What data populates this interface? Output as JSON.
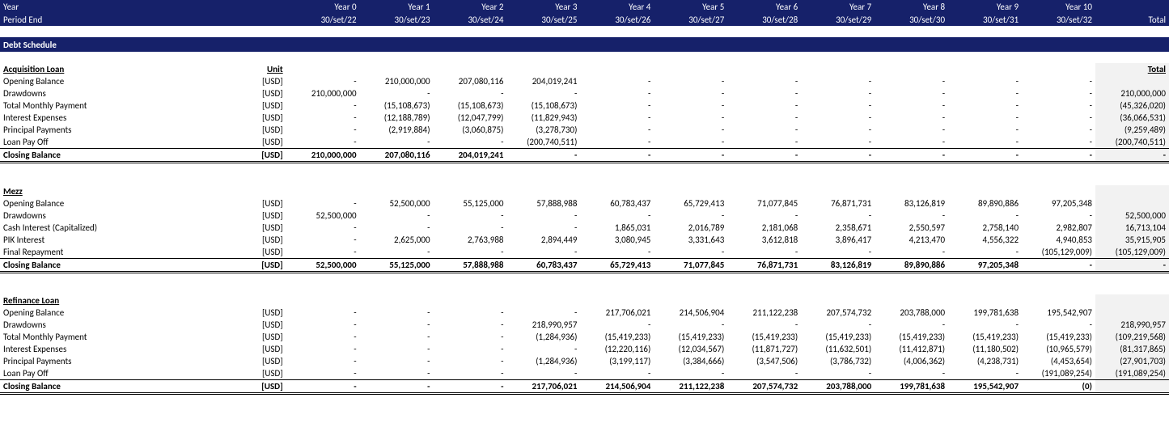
{
  "header": {
    "yearLabel": "Year",
    "periodLabel": "Period End",
    "years": [
      "Year 0",
      "Year 1",
      "Year 2",
      "Year 3",
      "Year 4",
      "Year 5",
      "Year 6",
      "Year 7",
      "Year 8",
      "Year 9",
      "Year 10"
    ],
    "dates": [
      "30/set/22",
      "30/set/23",
      "30/set/24",
      "30/set/25",
      "30/set/26",
      "30/set/27",
      "30/set/28",
      "30/set/29",
      "30/set/30",
      "30/set/31",
      "30/set/32"
    ],
    "totalLabel": "Total"
  },
  "sectionTitle": "Debt Schedule",
  "unitHeader": "Unit",
  "totalColHeader": "Total",
  "unit": "[USD]",
  "sections": [
    {
      "title": "Acquisition Loan",
      "showUnitHeader": true,
      "rows": [
        {
          "label": "Opening Balance",
          "vals": [
            "-",
            "210,000,000",
            "207,080,116",
            "204,019,241",
            "-",
            "-",
            "-",
            "-",
            "-",
            "-",
            "-"
          ],
          "total": ""
        },
        {
          "label": "Drawdowns",
          "vals": [
            "210,000,000",
            "-",
            "-",
            "-",
            "-",
            "-",
            "-",
            "-",
            "-",
            "-",
            "-"
          ],
          "total": "210,000,000"
        },
        {
          "label": "Total Monthly Payment",
          "vals": [
            "-",
            "(15,108,673)",
            "(15,108,673)",
            "(15,108,673)",
            "-",
            "-",
            "-",
            "-",
            "-",
            "-",
            "-"
          ],
          "total": "(45,326,020)"
        },
        {
          "label": "Interest Expenses",
          "vals": [
            "-",
            "(12,188,789)",
            "(12,047,799)",
            "(11,829,943)",
            "-",
            "-",
            "-",
            "-",
            "-",
            "-",
            "-"
          ],
          "total": "(36,066,531)"
        },
        {
          "label": "Principal Payments",
          "vals": [
            "-",
            "(2,919,884)",
            "(3,060,875)",
            "(3,278,730)",
            "-",
            "-",
            "-",
            "-",
            "-",
            "-",
            "-"
          ],
          "total": "(9,259,489)"
        },
        {
          "label": "Loan Pay Off",
          "vals": [
            "-",
            "-",
            "-",
            "(200,740,511)",
            "-",
            "-",
            "-",
            "-",
            "-",
            "-",
            "-"
          ],
          "total": "(200,740,511)"
        }
      ],
      "closing": {
        "label": "Closing Balance",
        "vals": [
          "210,000,000",
          "207,080,116",
          "204,019,241",
          "-",
          "-",
          "-",
          "-",
          "-",
          "-",
          "-",
          "-"
        ],
        "total": "-"
      }
    },
    {
      "title": "Mezz",
      "showUnitHeader": false,
      "rows": [
        {
          "label": "Opening Balance",
          "vals": [
            "-",
            "52,500,000",
            "55,125,000",
            "57,888,988",
            "60,783,437",
            "65,729,413",
            "71,077,845",
            "76,871,731",
            "83,126,819",
            "89,890,886",
            "97,205,348"
          ],
          "total": ""
        },
        {
          "label": "Drawdowns",
          "vals": [
            "52,500,000",
            "-",
            "-",
            "-",
            "-",
            "-",
            "-",
            "-",
            "-",
            "-",
            "-"
          ],
          "total": "52,500,000"
        },
        {
          "label": "Cash Interest (Capitalized)",
          "vals": [
            "-",
            "-",
            "-",
            "-",
            "1,865,031",
            "2,016,789",
            "2,181,068",
            "2,358,671",
            "2,550,597",
            "2,758,140",
            "2,982,807"
          ],
          "total": "16,713,104"
        },
        {
          "label": "PIK Interest",
          "vals": [
            "-",
            "2,625,000",
            "2,763,988",
            "2,894,449",
            "3,080,945",
            "3,331,643",
            "3,612,818",
            "3,896,417",
            "4,213,470",
            "4,556,322",
            "4,940,853"
          ],
          "total": "35,915,905"
        },
        {
          "label": "Final Repayment",
          "vals": [
            "-",
            "-",
            "-",
            "-",
            "-",
            "-",
            "-",
            "-",
            "-",
            "-",
            "(105,129,009)"
          ],
          "total": "(105,129,009)"
        }
      ],
      "closing": {
        "label": "Closing Balance",
        "vals": [
          "52,500,000",
          "55,125,000",
          "57,888,988",
          "60,783,437",
          "65,729,413",
          "71,077,845",
          "76,871,731",
          "83,126,819",
          "89,890,886",
          "97,205,348",
          "-"
        ],
        "total": "-"
      }
    },
    {
      "title": "Refinance Loan",
      "showUnitHeader": false,
      "rows": [
        {
          "label": "Opening Balance",
          "vals": [
            "-",
            "-",
            "-",
            "-",
            "217,706,021",
            "214,506,904",
            "211,122,238",
            "207,574,732",
            "203,788,000",
            "199,781,638",
            "195,542,907"
          ],
          "total": ""
        },
        {
          "label": "Drawdowns",
          "vals": [
            "-",
            "-",
            "-",
            "218,990,957",
            "-",
            "-",
            "-",
            "-",
            "-",
            "-",
            "-"
          ],
          "total": "218,990,957"
        },
        {
          "label": "Total Monthly Payment",
          "vals": [
            "-",
            "-",
            "-",
            "(1,284,936)",
            "(15,419,233)",
            "(15,419,233)",
            "(15,419,233)",
            "(15,419,233)",
            "(15,419,233)",
            "(15,419,233)",
            "(15,419,233)"
          ],
          "total": "(109,219,568)"
        },
        {
          "label": "Interest Expenses",
          "vals": [
            "-",
            "-",
            "-",
            "-",
            "(12,220,116)",
            "(12,034,567)",
            "(11,871,727)",
            "(11,632,501)",
            "(11,412,871)",
            "(11,180,502)",
            "(10,965,579)"
          ],
          "total": "(81,317,865)"
        },
        {
          "label": "Principal Payments",
          "vals": [
            "-",
            "-",
            "-",
            "(1,284,936)",
            "(3,199,117)",
            "(3,384,666)",
            "(3,547,506)",
            "(3,786,732)",
            "(4,006,362)",
            "(4,238,731)",
            "(4,453,654)"
          ],
          "total": "(27,901,703)"
        },
        {
          "label": "Loan Pay Off",
          "vals": [
            "-",
            "-",
            "-",
            "-",
            "-",
            "-",
            "-",
            "-",
            "-",
            "-",
            "(191,089,254)"
          ],
          "total": "(191,089,254)"
        }
      ],
      "closing": {
        "label": "Closing Balance",
        "vals": [
          "-",
          "-",
          "-",
          "217,706,021",
          "214,506,904",
          "211,122,238",
          "207,574,732",
          "203,788,000",
          "199,781,638",
          "195,542,907",
          "(0)"
        ],
        "total": ""
      }
    }
  ]
}
